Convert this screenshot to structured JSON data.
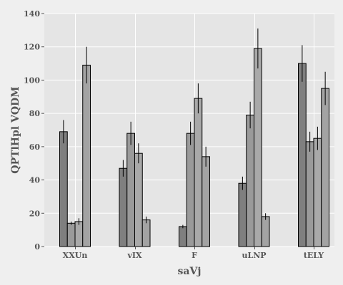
{
  "chart_data": {
    "type": "bar",
    "xlabel": "saVj",
    "ylabel": "QPTlHpl VQDM",
    "categories": [
      "XXUn",
      "vIX",
      "F",
      "uLNP",
      "tELY"
    ],
    "ylim": [
      0,
      140
    ],
    "yticks": [
      0,
      20,
      40,
      60,
      80,
      100,
      120,
      140
    ],
    "grid": true,
    "series": [
      {
        "color": "#7f7f7f",
        "values": [
          69,
          47,
          12,
          38,
          110
        ],
        "errors": [
          7,
          5,
          1,
          4,
          11
        ]
      },
      {
        "color": "#9a9a9a",
        "values": [
          14,
          68,
          68,
          79,
          63
        ],
        "errors": [
          1,
          7,
          7,
          8,
          6
        ]
      },
      {
        "color": "#a9a9a9",
        "values": [
          15,
          56,
          89,
          119,
          65
        ],
        "errors": [
          2,
          6,
          9,
          12,
          7
        ]
      },
      {
        "color": "#a3a3a3",
        "values": [
          109,
          16,
          54,
          18,
          95
        ],
        "errors": [
          11,
          2,
          6,
          2,
          10
        ]
      }
    ],
    "colors": {
      "background": "#efefef",
      "plot_area": "#e5e5e5",
      "grid": "#ffffff",
      "text": "#555555",
      "edge": "#000000"
    }
  }
}
